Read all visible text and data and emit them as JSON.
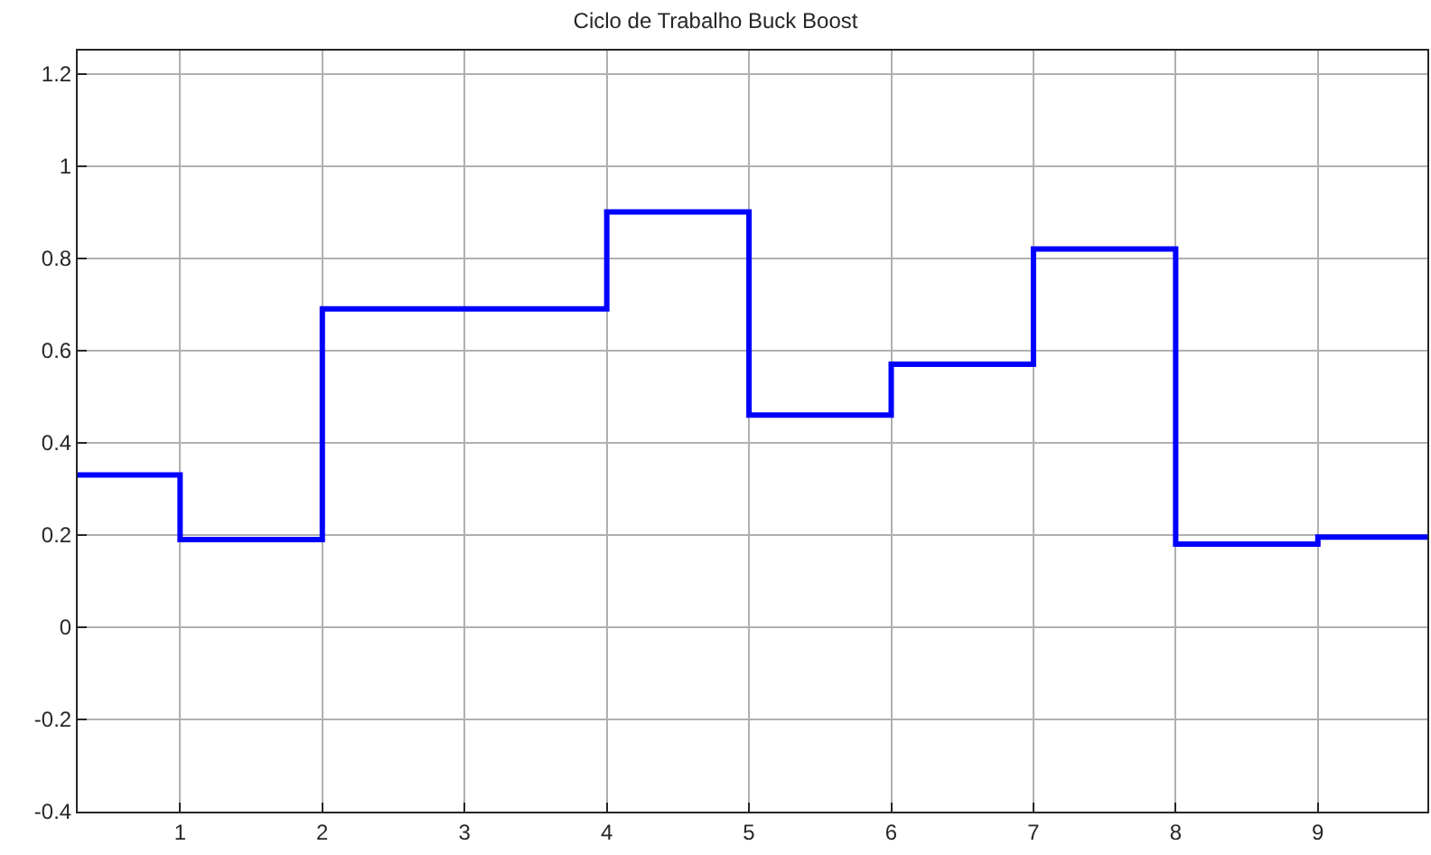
{
  "chart_data": {
    "type": "step",
    "title": "Ciclo de Trabalho Buck Boost",
    "x": [
      0.28,
      1,
      2,
      4,
      5,
      6,
      7,
      8,
      9,
      9.77
    ],
    "series": [
      {
        "color": "#0000ff",
        "values": [
          0.33,
          0.19,
          0.69,
          0.9,
          0.46,
          0.57,
          0.82,
          0.18,
          0.195,
          0.195
        ]
      }
    ],
    "xlim": [
      0.28,
      9.77
    ],
    "xticks": [
      1,
      2,
      3,
      4,
      5,
      6,
      7,
      8,
      9
    ],
    "ylim": [
      -0.4,
      1.25
    ],
    "yticks": [
      -0.4,
      -0.2,
      0,
      0.2,
      0.4,
      0.6,
      0.8,
      1,
      1.2
    ],
    "grid": true,
    "marker": "none",
    "line_style": "solid"
  }
}
